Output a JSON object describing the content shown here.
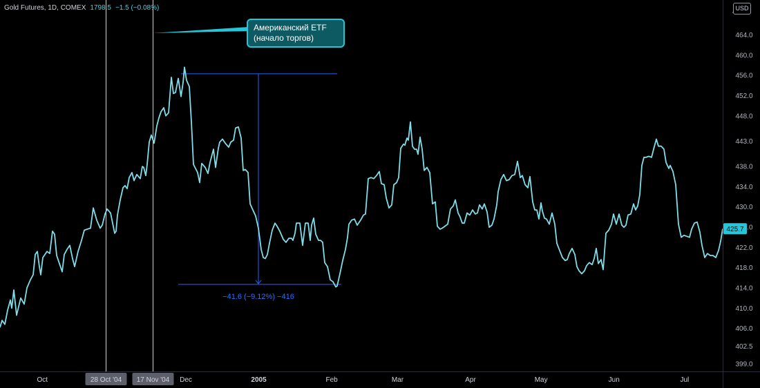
{
  "header": {
    "symbol": "Gold Futures, 1D, COMEX",
    "price": "1798.5",
    "change": "−1.5 (−0.08%)"
  },
  "currency": "USD",
  "colors": {
    "line": "#80deea",
    "measure": "#2962ff",
    "accent": "#26c6da",
    "background": "#000000"
  },
  "annotation": {
    "line1": "Американский ETF",
    "line2": "(начало торгов)"
  },
  "measure_label": "−41.6 (−9.12%) −416",
  "chart_data": {
    "type": "line",
    "title": "",
    "xlabel": "",
    "ylabel": "",
    "ylim": [
      397.5,
      468.7
    ],
    "y_ticks": [
      "464.0",
      "460.0",
      "456.0",
      "452.0",
      "448.0",
      "443.0",
      "438.0",
      "434.0",
      "430.0",
      "426.0",
      "422.0",
      "418.0",
      "414.0",
      "410.0",
      "406.0",
      "402.5",
      "399.0"
    ],
    "y_tick_values": [
      464.0,
      460.0,
      456.0,
      452.0,
      448.0,
      443.0,
      438.0,
      434.0,
      430.0,
      426.0,
      422.0,
      418.0,
      414.0,
      410.0,
      406.0,
      402.5,
      399.0
    ],
    "top_partial_tick": "4",
    "x_ticks": [
      {
        "label": "Oct",
        "date": "2004-10-01",
        "bold": false
      },
      {
        "label": "Dec",
        "date": "2004-12-01",
        "bold": false
      },
      {
        "label": "2005",
        "date": "2005-01-01",
        "bold": true
      },
      {
        "label": "Feb",
        "date": "2005-02-01",
        "bold": false
      },
      {
        "label": "Mar",
        "date": "2005-03-01",
        "bold": false
      },
      {
        "label": "Apr",
        "date": "2005-04-01",
        "bold": false
      },
      {
        "label": "May",
        "date": "2005-05-01",
        "bold": false
      },
      {
        "label": "Jun",
        "date": "2005-06-01",
        "bold": false
      },
      {
        "label": "Jul",
        "date": "2005-07-01",
        "bold": false
      }
    ],
    "markers": [
      {
        "label": "28 Oct '04",
        "date": "2004-10-28"
      },
      {
        "label": "17 Nov '04",
        "date": "2004-11-17"
      }
    ],
    "last_value": "425.7",
    "measure": {
      "from": 456.3,
      "to": 414.7
    },
    "series": [
      {
        "values": [
          [
            0,
            406.2
          ],
          [
            3,
            407.6
          ],
          [
            7,
            406.8
          ],
          [
            11,
            409.6
          ],
          [
            15,
            411.6
          ],
          [
            17,
            410.0
          ],
          [
            20,
            413.6
          ],
          [
            24,
            408.6
          ],
          [
            30,
            412.0
          ],
          [
            35,
            410.8
          ],
          [
            39,
            414.0
          ],
          [
            44,
            415.6
          ],
          [
            48,
            416.6
          ],
          [
            51,
            420.6
          ],
          [
            54,
            421.2
          ],
          [
            57,
            418.2
          ],
          [
            59,
            416.6
          ],
          [
            62,
            420.0
          ],
          [
            64,
            420.4
          ],
          [
            68,
            421.2
          ],
          [
            72,
            420.8
          ],
          [
            76,
            425.2
          ],
          [
            79,
            424.6
          ],
          [
            82,
            420.4
          ],
          [
            86,
            418.8
          ],
          [
            90,
            417.2
          ],
          [
            93,
            420.6
          ],
          [
            97,
            421.6
          ],
          [
            101,
            422.4
          ],
          [
            105,
            419.8
          ],
          [
            108,
            418.2
          ],
          [
            113,
            421.2
          ],
          [
            118,
            423.4
          ],
          [
            122,
            425.4
          ],
          [
            126,
            425.6
          ],
          [
            131,
            425.8
          ],
          [
            135,
            429.8
          ],
          [
            140,
            427.4
          ],
          [
            145,
            425.8
          ],
          [
            148,
            426.4
          ],
          [
            152,
            428.6
          ],
          [
            155,
            429.6
          ],
          [
            160,
            428.8
          ],
          [
            166,
            424.8
          ],
          [
            168,
            425.2
          ],
          [
            170,
            428.4
          ],
          [
            174,
            431.4
          ],
          [
            178,
            433.8
          ],
          [
            181,
            434.2
          ],
          [
            184,
            433.6
          ],
          [
            187,
            435.8
          ],
          [
            191,
            436.8
          ],
          [
            194,
            435.2
          ],
          [
            198,
            436.4
          ],
          [
            203,
            435.6
          ],
          [
            206,
            438.0
          ],
          [
            208,
            437.8
          ],
          [
            211,
            436.2
          ],
          [
            213,
            438.4
          ],
          [
            216,
            442.8
          ],
          [
            219,
            444.2
          ],
          [
            223,
            442.6
          ],
          [
            227,
            446.0
          ],
          [
            230,
            447.6
          ],
          [
            233,
            448.8
          ],
          [
            237,
            449.6
          ],
          [
            240,
            448.0
          ],
          [
            244,
            448.6
          ],
          [
            248,
            455.6
          ],
          [
            251,
            452.4
          ],
          [
            254,
            452.6
          ],
          [
            258,
            455.4
          ],
          [
            262,
            451.8
          ],
          [
            265,
            454.6
          ],
          [
            267,
            457.6
          ],
          [
            270,
            455.0
          ],
          [
            274,
            453.8
          ],
          [
            277,
            446.8
          ],
          [
            280,
            438.4
          ],
          [
            286,
            436.8
          ],
          [
            289,
            434.8
          ],
          [
            292,
            438.6
          ],
          [
            297,
            437.8
          ],
          [
            301,
            436.6
          ],
          [
            304,
            438.8
          ],
          [
            309,
            441.4
          ],
          [
            312,
            437.8
          ],
          [
            316,
            441.6
          ],
          [
            318,
            442.8
          ],
          [
            322,
            443.4
          ],
          [
            326,
            442.6
          ],
          [
            331,
            441.8
          ],
          [
            334,
            442.8
          ],
          [
            338,
            443.2
          ],
          [
            341,
            445.6
          ],
          [
            345,
            445.8
          ],
          [
            349,
            443.6
          ],
          [
            352,
            437.2
          ],
          [
            355,
            437.4
          ],
          [
            359,
            436.8
          ],
          [
            362,
            430.6
          ],
          [
            366,
            429.4
          ],
          [
            370,
            428.2
          ],
          [
            374,
            425.8
          ],
          [
            378,
            421.6
          ],
          [
            381,
            420.0
          ],
          [
            384,
            419.8
          ],
          [
            387,
            420.6
          ],
          [
            390,
            422.8
          ],
          [
            394,
            425.4
          ],
          [
            398,
            426.8
          ],
          [
            401,
            426.2
          ],
          [
            405,
            425.2
          ],
          [
            410,
            423.6
          ],
          [
            414,
            423.0
          ],
          [
            418,
            423.8
          ],
          [
            422,
            423.8
          ],
          [
            424,
            423.4
          ],
          [
            427,
            424.8
          ],
          [
            429,
            426.8
          ],
          [
            434,
            426.8
          ],
          [
            438,
            422.4
          ],
          [
            442,
            426.8
          ],
          [
            446,
            426.8
          ],
          [
            449,
            423.4
          ],
          [
            451,
            426.4
          ],
          [
            454,
            427.8
          ],
          [
            457,
            424.6
          ],
          [
            461,
            423.4
          ],
          [
            464,
            423.4
          ],
          [
            467,
            423.0
          ],
          [
            470,
            419.0
          ],
          [
            474,
            418.2
          ],
          [
            478,
            415.6
          ],
          [
            482,
            415.2
          ],
          [
            486,
            414.2
          ],
          [
            488,
            414.4
          ],
          [
            492,
            416.8
          ],
          [
            496,
            419.4
          ],
          [
            500,
            421.6
          ],
          [
            503,
            424.0
          ],
          [
            505,
            426.6
          ],
          [
            509,
            427.4
          ],
          [
            513,
            427.6
          ],
          [
            517,
            426.4
          ],
          [
            522,
            427.4
          ],
          [
            526,
            428.4
          ],
          [
            529,
            428.6
          ],
          [
            533,
            435.6
          ],
          [
            537,
            435.8
          ],
          [
            541,
            435.6
          ],
          [
            545,
            436.2
          ],
          [
            549,
            437.0
          ],
          [
            552,
            434.6
          ],
          [
            556,
            434.4
          ],
          [
            559,
            431.8
          ],
          [
            563,
            429.8
          ],
          [
            567,
            430.4
          ],
          [
            570,
            434.4
          ],
          [
            574,
            434.8
          ],
          [
            577,
            435.8
          ],
          [
            580,
            441.6
          ],
          [
            584,
            442.4
          ],
          [
            586,
            442.2
          ],
          [
            589,
            443.6
          ],
          [
            591,
            443.2
          ],
          [
            594,
            446.8
          ],
          [
            597,
            442.0
          ],
          [
            600,
            441.4
          ],
          [
            603,
            441.4
          ],
          [
            605,
            440.4
          ],
          [
            608,
            443.8
          ],
          [
            611,
            441.4
          ],
          [
            614,
            437.2
          ],
          [
            618,
            437.8
          ],
          [
            622,
            436.8
          ],
          [
            626,
            430.6
          ],
          [
            630,
            431.0
          ],
          [
            633,
            426.2
          ],
          [
            637,
            425.6
          ],
          [
            640,
            425.8
          ],
          [
            644,
            426.2
          ],
          [
            648,
            426.6
          ],
          [
            652,
            429.6
          ],
          [
            656,
            430.2
          ],
          [
            659,
            431.4
          ],
          [
            663,
            428.8
          ],
          [
            666,
            428.0
          ],
          [
            669,
            426.8
          ],
          [
            672,
            426.8
          ],
          [
            676,
            428.8
          ],
          [
            680,
            428.4
          ],
          [
            684,
            429.4
          ],
          [
            688,
            428.6
          ],
          [
            691,
            428.8
          ],
          [
            694,
            430.4
          ],
          [
            698,
            429.6
          ],
          [
            701,
            430.6
          ],
          [
            705,
            429.0
          ],
          [
            708,
            426.0
          ],
          [
            712,
            426.4
          ],
          [
            715,
            427.6
          ],
          [
            719,
            430.4
          ],
          [
            721,
            433.0
          ],
          [
            725,
            435.4
          ],
          [
            729,
            436.4
          ],
          [
            733,
            435.2
          ],
          [
            737,
            435.4
          ],
          [
            741,
            436.2
          ],
          [
            745,
            436.4
          ],
          [
            749,
            439.0
          ],
          [
            753,
            435.8
          ],
          [
            756,
            436.2
          ],
          [
            760,
            434.4
          ],
          [
            764,
            433.8
          ],
          [
            767,
            436.0
          ],
          [
            771,
            431.0
          ],
          [
            774,
            429.4
          ],
          [
            777,
            429.4
          ],
          [
            780,
            427.6
          ],
          [
            783,
            430.8
          ],
          [
            785,
            429.2
          ],
          [
            788,
            427.8
          ],
          [
            791,
            427.6
          ],
          [
            795,
            426.6
          ],
          [
            799,
            428.8
          ],
          [
            803,
            426.6
          ],
          [
            806,
            422.8
          ],
          [
            810,
            421.4
          ],
          [
            814,
            420.0
          ],
          [
            818,
            419.4
          ],
          [
            821,
            419.6
          ],
          [
            824,
            420.8
          ],
          [
            828,
            421.8
          ],
          [
            832,
            420.6
          ],
          [
            835,
            418.2
          ],
          [
            838,
            417.4
          ],
          [
            842,
            416.8
          ],
          [
            846,
            417.4
          ],
          [
            849,
            418.4
          ],
          [
            853,
            419.0
          ],
          [
            857,
            418.6
          ],
          [
            860,
            419.8
          ],
          [
            863,
            421.8
          ],
          [
            866,
            418.8
          ],
          [
            870,
            419.6
          ],
          [
            873,
            417.6
          ],
          [
            877,
            424.8
          ],
          [
            881,
            425.4
          ],
          [
            885,
            426.6
          ],
          [
            888,
            428.6
          ],
          [
            892,
            426.6
          ],
          [
            896,
            428.6
          ],
          [
            900,
            426.4
          ],
          [
            903,
            426.0
          ],
          [
            906,
            426.4
          ],
          [
            909,
            428.4
          ],
          [
            913,
            428.6
          ],
          [
            917,
            430.6
          ],
          [
            920,
            429.4
          ],
          [
            923,
            430.2
          ],
          [
            926,
            432.4
          ],
          [
            929,
            438.2
          ],
          [
            932,
            439.8
          ],
          [
            935,
            439.8
          ],
          [
            939,
            440.0
          ],
          [
            943,
            439.8
          ],
          [
            946,
            441.4
          ],
          [
            950,
            443.4
          ],
          [
            953,
            442.0
          ],
          [
            957,
            442.0
          ],
          [
            961,
            441.4
          ],
          [
            964,
            438.8
          ],
          [
            968,
            437.6
          ],
          [
            970,
            438.2
          ],
          [
            974,
            437.0
          ],
          [
            978,
            434.4
          ],
          [
            982,
            426.6
          ],
          [
            986,
            424.0
          ],
          [
            990,
            424.4
          ],
          [
            994,
            424.2
          ],
          [
            998,
            424.0
          ],
          [
            1001,
            425.6
          ],
          [
            1005,
            426.8
          ],
          [
            1009,
            427.0
          ],
          [
            1013,
            425.0
          ],
          [
            1016,
            422.4
          ],
          [
            1020,
            420.0
          ],
          [
            1024,
            420.8
          ],
          [
            1028,
            420.4
          ],
          [
            1032,
            420.4
          ],
          [
            1036,
            420.0
          ],
          [
            1040,
            421.4
          ],
          [
            1043,
            423.2
          ],
          [
            1046,
            425.7
          ]
        ]
      }
    ]
  }
}
